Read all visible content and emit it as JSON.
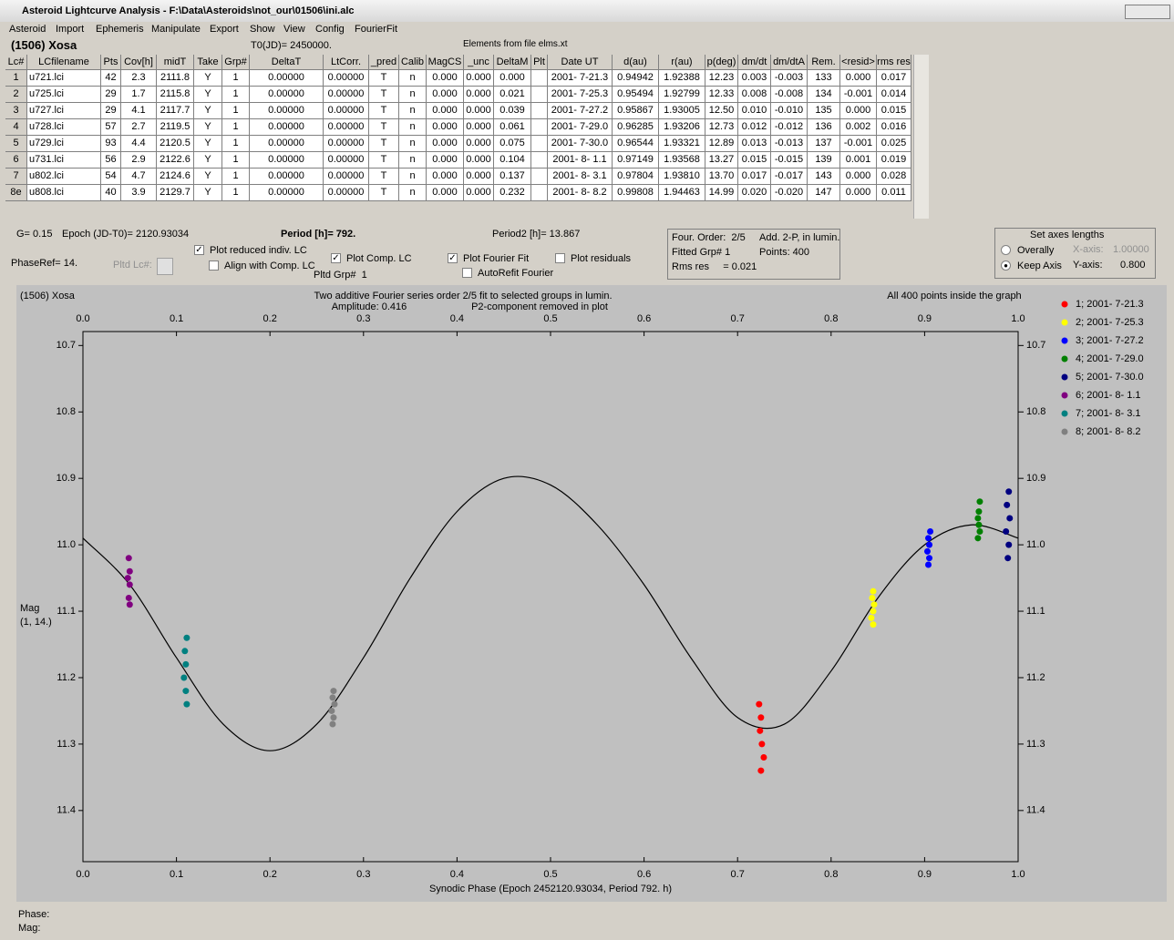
{
  "window": {
    "title": "Asteroid Lightcurve Analysis - F:\\Data\\Asteroids\\not_our\\01506\\ini.alc",
    "menu": [
      "Asteroid",
      "Import",
      "Ephemeris",
      "Manipulate",
      "Export",
      "Show",
      "View",
      "Config",
      "FourierFit"
    ]
  },
  "header": {
    "object": "(1506) Xosa",
    "t0": "T0(JD)= 2450000.",
    "elements": "Elements from file elms.xt"
  },
  "table": {
    "columns": [
      "Lc#",
      "LCfilename",
      "Pts",
      "Cov[h]",
      "midT",
      "Take",
      "Grp#",
      "DeltaT",
      "LtCorr.",
      "_pred",
      "Calib",
      "MagCS",
      "_unc",
      "DeltaM",
      "Plt",
      "Date UT",
      "d(au)",
      "r(au)",
      "p(deg)",
      "dm/dt",
      "dm/dtA",
      "Rem.",
      "<resid>",
      "rms res"
    ],
    "rows": [
      [
        "1",
        "u721.lci",
        "42",
        "2.3",
        "2111.8",
        "Y",
        "1",
        "0.00000",
        "0.00000",
        "T",
        "n",
        "0.000",
        "0.000",
        "0.000",
        null,
        "2001- 7-21.3",
        "0.94942",
        "1.92388",
        "12.23",
        "0.003",
        "-0.003",
        "133",
        "0.000",
        "0.017"
      ],
      [
        "2",
        "u725.lci",
        "29",
        "1.7",
        "2115.8",
        "Y",
        "1",
        "0.00000",
        "0.00000",
        "T",
        "n",
        "0.000",
        "0.000",
        "0.021",
        null,
        "2001- 7-25.3",
        "0.95494",
        "1.92799",
        "12.33",
        "0.008",
        "-0.008",
        "134",
        "-0.001",
        "0.014"
      ],
      [
        "3",
        "u727.lci",
        "29",
        "4.1",
        "2117.7",
        "Y",
        "1",
        "0.00000",
        "0.00000",
        "T",
        "n",
        "0.000",
        "0.000",
        "0.039",
        null,
        "2001- 7-27.2",
        "0.95867",
        "1.93005",
        "12.50",
        "0.010",
        "-0.010",
        "135",
        "0.000",
        "0.015"
      ],
      [
        "4",
        "u728.lci",
        "57",
        "2.7",
        "2119.5",
        "Y",
        "1",
        "0.00000",
        "0.00000",
        "T",
        "n",
        "0.000",
        "0.000",
        "0.061",
        null,
        "2001- 7-29.0",
        "0.96285",
        "1.93206",
        "12.73",
        "0.012",
        "-0.012",
        "136",
        "0.002",
        "0.016"
      ],
      [
        "5",
        "u729.lci",
        "93",
        "4.4",
        "2120.5",
        "Y",
        "1",
        "0.00000",
        "0.00000",
        "T",
        "n",
        "0.000",
        "0.000",
        "0.075",
        null,
        "2001- 7-30.0",
        "0.96544",
        "1.93321",
        "12.89",
        "0.013",
        "-0.013",
        "137",
        "-0.001",
        "0.025"
      ],
      [
        "6",
        "u731.lci",
        "56",
        "2.9",
        "2122.6",
        "Y",
        "1",
        "0.00000",
        "0.00000",
        "T",
        "n",
        "0.000",
        "0.000",
        "0.104",
        null,
        "2001- 8- 1.1",
        "0.97149",
        "1.93568",
        "13.27",
        "0.015",
        "-0.015",
        "139",
        "0.001",
        "0.019"
      ],
      [
        "7",
        "u802.lci",
        "54",
        "4.7",
        "2124.6",
        "Y",
        "1",
        "0.00000",
        "0.00000",
        "T",
        "n",
        "0.000",
        "0.000",
        "0.137",
        null,
        "2001- 8- 3.1",
        "0.97804",
        "1.93810",
        "13.70",
        "0.017",
        "-0.017",
        "143",
        "0.000",
        "0.028"
      ],
      [
        "8e",
        "u808.lci",
        "40",
        "3.9",
        "2129.7",
        "Y",
        "1",
        "0.00000",
        "0.00000",
        "T",
        "n",
        "0.000",
        "0.000",
        "0.232",
        null,
        "2001- 8- 8.2",
        "0.99808",
        "1.94463",
        "14.99",
        "0.020",
        "-0.020",
        "147",
        "0.000",
        "0.011"
      ]
    ]
  },
  "params": {
    "g": "G= 0.15",
    "epoch": "Epoch (JD-T0)= 2120.93034",
    "period": "Period [h]= 792.",
    "period2": "Period2 [h]= 13.867",
    "phase_ref": "PhaseRef= 14.",
    "pltd_lc": "Pltd Lc#:",
    "pltd_grp": "Pltd Grp#  1"
  },
  "checkboxes": [
    {
      "label": "Plot reduced indiv. LC",
      "checked": true
    },
    {
      "label": "Align with Comp. LC",
      "checked": false
    },
    {
      "label": "Plot Comp. LC",
      "checked": true
    },
    {
      "label": "Plot Fourier Fit",
      "checked": true
    },
    {
      "label": "AutoRefit Fourier",
      "checked": false
    },
    {
      "label": "Plot residuals",
      "checked": false
    }
  ],
  "fourier": [
    "Four. Order:  2/5",
    "Add. 2-P, in lumin.",
    "Fitted Grp# 1",
    "Points: 400",
    "Rms res     = 0.021"
  ],
  "axes_box": {
    "title": "Set axes lengths",
    "options": [
      {
        "label": "Overally",
        "checked": false
      },
      {
        "label": "Keep Axis",
        "checked": true
      }
    ],
    "x_axis": "X-axis:",
    "x_value": "1.00000",
    "y_axis": "Y-axis:",
    "y_value": "0.800"
  },
  "chart_data": {
    "type": "scatter",
    "title": "(1506) Xosa",
    "subtitle": "Two additive Fourier series order 2/5 fit to selected groups in lumin.",
    "annotations": [
      "Amplitude: 0.416",
      "P2-component removed in plot",
      "All 400 points inside the graph"
    ],
    "y_label": [
      "Mag",
      "(1, 14.)"
    ],
    "x_label": "Synodic Phase (Epoch 2452120.93034, Period 792. h)",
    "xlim": [
      0,
      1
    ],
    "xticks": [
      {
        "value": 0,
        "label": "0.0"
      },
      0.1,
      0.2,
      0.3,
      0.4,
      0.5,
      0.6,
      0.7,
      0.8,
      0.9,
      {
        "value": 1,
        "label": "1.0"
      }
    ],
    "ylim": [
      10.679,
      11.477
    ],
    "y_inverted": true,
    "yticks": [
      10.7,
      10.8,
      10.9,
      {
        "value": 11,
        "label": "11.0"
      },
      11.1,
      11.2,
      11.3,
      11.4
    ],
    "fit": {
      "color": "#000000",
      "x": [
        0,
        0.05,
        0.1,
        0.15,
        0.2,
        0.25,
        0.3,
        0.35,
        0.4,
        0.45,
        0.5,
        0.55,
        0.6,
        0.65,
        0.7,
        0.75,
        0.8,
        0.85,
        0.9,
        0.95,
        1
      ],
      "values": [
        10.99,
        11.06,
        11.17,
        11.27,
        11.31,
        11.27,
        11.17,
        11.05,
        10.95,
        10.9,
        10.91,
        10.97,
        11.06,
        11.17,
        11.26,
        11.27,
        11.19,
        11.08,
        11.0,
        10.97,
        10.99
      ]
    },
    "series": [
      {
        "name": "1; 2001- 7-21.3",
        "color": "#ff0000",
        "x": [
          0.723,
          0.725,
          0.724,
          0.726,
          0.728,
          0.725
        ],
        "values": [
          11.24,
          11.26,
          11.28,
          11.3,
          11.32,
          11.34
        ]
      },
      {
        "name": "2; 2001- 7-25.3",
        "color": "#ffff00",
        "x": [
          0.845,
          0.844,
          0.846,
          0.845,
          0.843,
          0.845
        ],
        "values": [
          11.07,
          11.08,
          11.09,
          11.1,
          11.11,
          11.12
        ]
      },
      {
        "name": "3; 2001- 7-27.2",
        "color": "#0000ff",
        "x": [
          0.906,
          0.904,
          0.905,
          0.903,
          0.905,
          0.904
        ],
        "values": [
          10.98,
          10.99,
          11.0,
          11.01,
          11.02,
          11.03
        ]
      },
      {
        "name": "4; 2001- 7-29.0",
        "color": "#008000",
        "x": [
          0.959,
          0.958,
          0.957,
          0.958,
          0.959,
          0.957
        ],
        "values": [
          10.935,
          10.95,
          10.96,
          10.97,
          10.98,
          10.99
        ]
      },
      {
        "name": "5; 2001- 7-30.0",
        "color": "#000080",
        "x": [
          0.99,
          0.988,
          0.991,
          0.987,
          0.99,
          0.989
        ],
        "values": [
          10.92,
          10.94,
          10.96,
          10.98,
          11.0,
          11.02
        ]
      },
      {
        "name": "6; 2001- 8- 1.1",
        "color": "#800080",
        "x": [
          0.049,
          0.05,
          0.048,
          0.05,
          0.049,
          0.05
        ],
        "values": [
          11.02,
          11.04,
          11.05,
          11.06,
          11.08,
          11.09
        ]
      },
      {
        "name": "7; 2001- 8- 3.1",
        "color": "#008080",
        "x": [
          0.111,
          0.109,
          0.11,
          0.108,
          0.11,
          0.111
        ],
        "values": [
          11.14,
          11.16,
          11.18,
          11.2,
          11.22,
          11.24
        ]
      },
      {
        "name": "8; 2001- 8- 8.2",
        "color": "#808080",
        "x": [
          0.268,
          0.267,
          0.269,
          0.266,
          0.268,
          0.267
        ],
        "values": [
          11.22,
          11.23,
          11.24,
          11.25,
          11.26,
          11.27
        ]
      }
    ]
  },
  "status": {
    "phase": "Phase:",
    "mag": "Mag:"
  }
}
